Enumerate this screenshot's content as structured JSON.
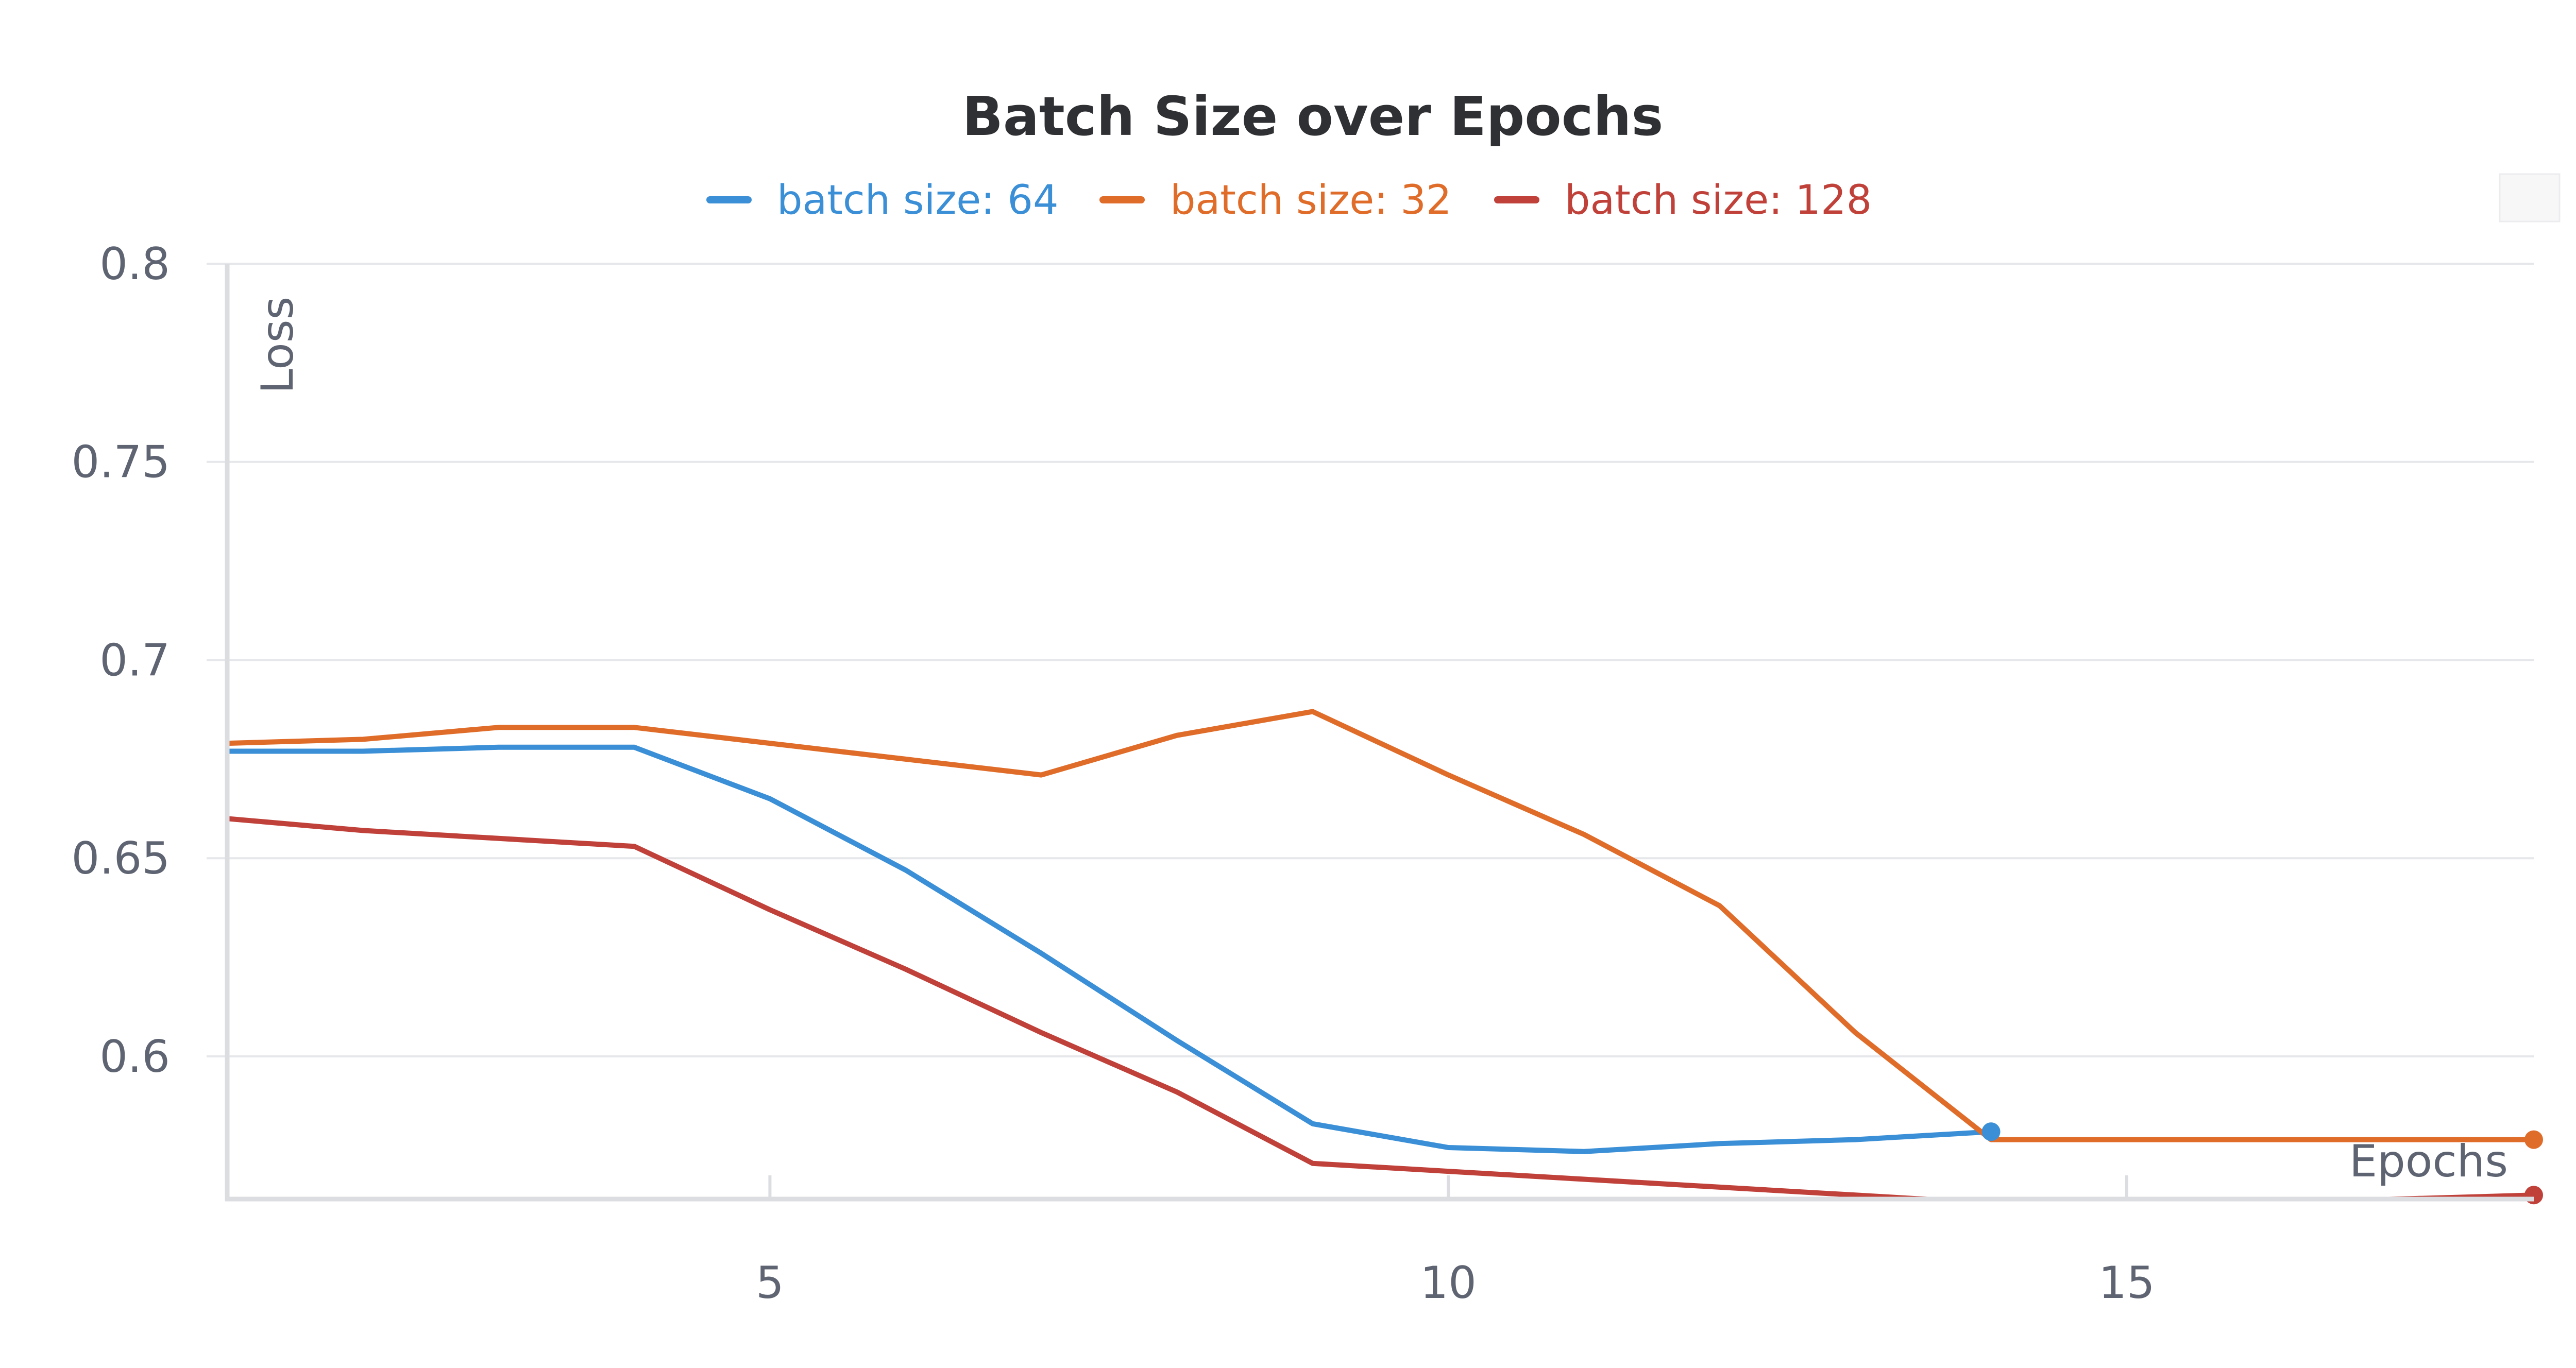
{
  "chart_data": {
    "type": "line",
    "title": "Batch Size over Epochs",
    "xlabel": "Epochs",
    "ylabel": "Loss",
    "xlim": [
      1,
      18
    ],
    "ylim": [
      0.564,
      0.8
    ],
    "xticks": [
      5,
      10,
      15
    ],
    "yticks": [
      0.6,
      0.65,
      0.7,
      0.75,
      0.8
    ],
    "ytick_labels": [
      "0.6",
      "0.65",
      "0.7",
      "0.75",
      "0.8"
    ],
    "xtick_labels": [
      "5",
      "10",
      "15"
    ],
    "grid": true,
    "legend_position": "top",
    "series": [
      {
        "name": "batch size: 64",
        "color": "#3a8fd6",
        "x": [
          1,
          2,
          3,
          4,
          5,
          6,
          7,
          8,
          9,
          10,
          11,
          12,
          13,
          14
        ],
        "y": [
          0.677,
          0.677,
          0.678,
          0.678,
          0.665,
          0.647,
          0.626,
          0.604,
          0.583,
          0.577,
          0.576,
          0.578,
          0.579,
          0.581
        ]
      },
      {
        "name": "batch size: 32",
        "color": "#e06c2a",
        "x": [
          1,
          2,
          3,
          4,
          5,
          6,
          7,
          8,
          9,
          10,
          11,
          12,
          13,
          14,
          15,
          16,
          17,
          18
        ],
        "y": [
          0.679,
          0.68,
          0.683,
          0.683,
          0.679,
          0.675,
          0.671,
          0.681,
          0.687,
          0.671,
          0.656,
          0.638,
          0.606,
          0.579,
          0.579,
          0.579,
          0.579,
          0.579
        ]
      },
      {
        "name": "batch size: 128",
        "color": "#c0413a",
        "x": [
          1,
          2,
          3,
          4,
          5,
          6,
          7,
          8,
          9,
          10,
          11,
          12,
          13,
          14,
          15,
          16,
          17,
          18
        ],
        "y": [
          0.66,
          0.657,
          0.655,
          0.653,
          0.637,
          0.622,
          0.606,
          0.591,
          0.573,
          0.571,
          0.569,
          0.567,
          0.565,
          0.563,
          0.562,
          0.563,
          0.564,
          0.565
        ]
      }
    ]
  }
}
